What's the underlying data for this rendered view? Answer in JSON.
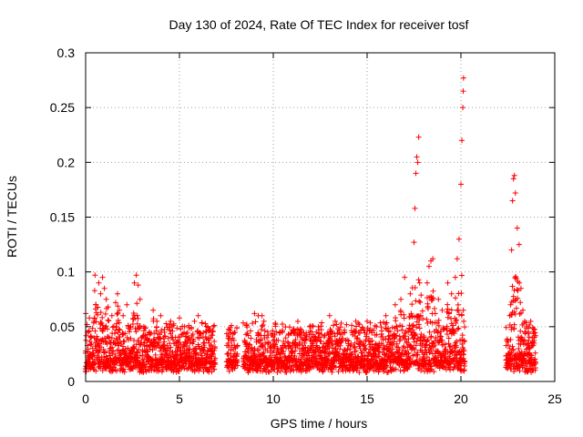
{
  "chart_data": {
    "type": "scatter",
    "title": "Day 130 of 2024, Rate Of TEC Index for receiver tosf",
    "xlabel": "GPS time / hours",
    "ylabel": "ROTI / TECUs",
    "xlim": [
      0,
      25
    ],
    "ylim": [
      0,
      0.3
    ],
    "xticks": [
      0,
      5,
      10,
      15,
      20,
      25
    ],
    "xtick_labels": [
      "0",
      "5",
      "10",
      "15",
      "20",
      "25"
    ],
    "yticks": [
      0,
      0.05,
      0.1,
      0.15,
      0.2,
      0.25,
      0.3
    ],
    "ytick_labels": [
      "0",
      "0.05",
      "0.1",
      "0.15",
      "0.2",
      "0.25",
      "0.3"
    ],
    "grid": true,
    "marker": "+",
    "color": "#ff0000",
    "data_gaps_hours": [
      [
        6.9,
        7.5
      ],
      [
        8.1,
        8.4
      ],
      [
        20.2,
        22.4
      ]
    ],
    "series": [
      {
        "name": "ROTI",
        "points": [
          [
            0.0,
            0.062
          ],
          [
            0.1,
            0.045
          ],
          [
            0.2,
            0.058
          ],
          [
            0.3,
            0.04
          ],
          [
            0.45,
            0.055
          ],
          [
            0.5,
            0.097
          ],
          [
            0.55,
            0.07
          ],
          [
            0.7,
            0.09
          ],
          [
            0.8,
            0.08
          ],
          [
            0.9,
            0.095
          ],
          [
            1.0,
            0.085
          ],
          [
            1.1,
            0.075
          ],
          [
            1.2,
            0.068
          ],
          [
            1.4,
            0.06
          ],
          [
            1.6,
            0.072
          ],
          [
            1.7,
            0.08
          ],
          [
            1.8,
            0.065
          ],
          [
            2.0,
            0.06
          ],
          [
            2.2,
            0.07
          ],
          [
            2.4,
            0.05
          ],
          [
            2.6,
            0.09
          ],
          [
            2.7,
            0.097
          ],
          [
            2.8,
            0.088
          ],
          [
            2.9,
            0.075
          ],
          [
            3.1,
            0.05
          ],
          [
            3.4,
            0.045
          ],
          [
            3.6,
            0.065
          ],
          [
            3.8,
            0.055
          ],
          [
            4.0,
            0.06
          ],
          [
            4.2,
            0.045
          ],
          [
            4.6,
            0.05
          ],
          [
            5.0,
            0.058
          ],
          [
            5.5,
            0.04
          ],
          [
            5.8,
            0.055
          ],
          [
            6.0,
            0.06
          ],
          [
            6.3,
            0.035
          ],
          [
            6.6,
            0.03
          ],
          [
            7.6,
            0.035
          ],
          [
            7.8,
            0.033
          ],
          [
            9.0,
            0.062
          ],
          [
            9.2,
            0.06
          ],
          [
            9.4,
            0.06
          ],
          [
            9.5,
            0.055
          ],
          [
            10.2,
            0.03
          ],
          [
            10.8,
            0.035
          ],
          [
            11.5,
            0.04
          ],
          [
            12.0,
            0.045
          ],
          [
            12.4,
            0.05
          ],
          [
            13.0,
            0.06
          ],
          [
            13.3,
            0.055
          ],
          [
            13.8,
            0.045
          ],
          [
            14.4,
            0.055
          ],
          [
            15.0,
            0.055
          ],
          [
            15.5,
            0.05
          ],
          [
            16.0,
            0.06
          ],
          [
            16.5,
            0.07
          ],
          [
            16.8,
            0.075
          ],
          [
            17.0,
            0.095
          ],
          [
            17.3,
            0.08
          ],
          [
            17.5,
            0.127
          ],
          [
            17.55,
            0.158
          ],
          [
            17.6,
            0.19
          ],
          [
            17.65,
            0.205
          ],
          [
            17.7,
            0.2
          ],
          [
            17.75,
            0.223
          ],
          [
            17.8,
            0.09
          ],
          [
            18.2,
            0.09
          ],
          [
            18.3,
            0.105
          ],
          [
            18.4,
            0.11
          ],
          [
            18.5,
            0.112
          ],
          [
            18.8,
            0.075
          ],
          [
            19.0,
            0.065
          ],
          [
            19.3,
            0.09
          ],
          [
            19.5,
            0.08
          ],
          [
            19.7,
            0.095
          ],
          [
            19.8,
            0.112
          ],
          [
            19.9,
            0.13
          ],
          [
            20.0,
            0.18
          ],
          [
            20.05,
            0.22
          ],
          [
            20.1,
            0.25
          ],
          [
            20.12,
            0.265
          ],
          [
            20.14,
            0.277
          ],
          [
            20.15,
            0.055
          ],
          [
            22.6,
            0.06
          ],
          [
            22.65,
            0.07
          ],
          [
            22.7,
            0.12
          ],
          [
            22.75,
            0.165
          ],
          [
            22.8,
            0.185
          ],
          [
            22.85,
            0.188
          ],
          [
            22.9,
            0.172
          ],
          [
            23.0,
            0.14
          ],
          [
            23.1,
            0.125
          ],
          [
            23.2,
            0.085
          ],
          [
            23.3,
            0.065
          ],
          [
            23.4,
            0.055
          ],
          [
            23.5,
            0.05
          ],
          [
            23.6,
            0.045
          ],
          [
            23.8,
            0.04
          ],
          [
            23.9,
            0.035
          ]
        ]
      }
    ]
  }
}
